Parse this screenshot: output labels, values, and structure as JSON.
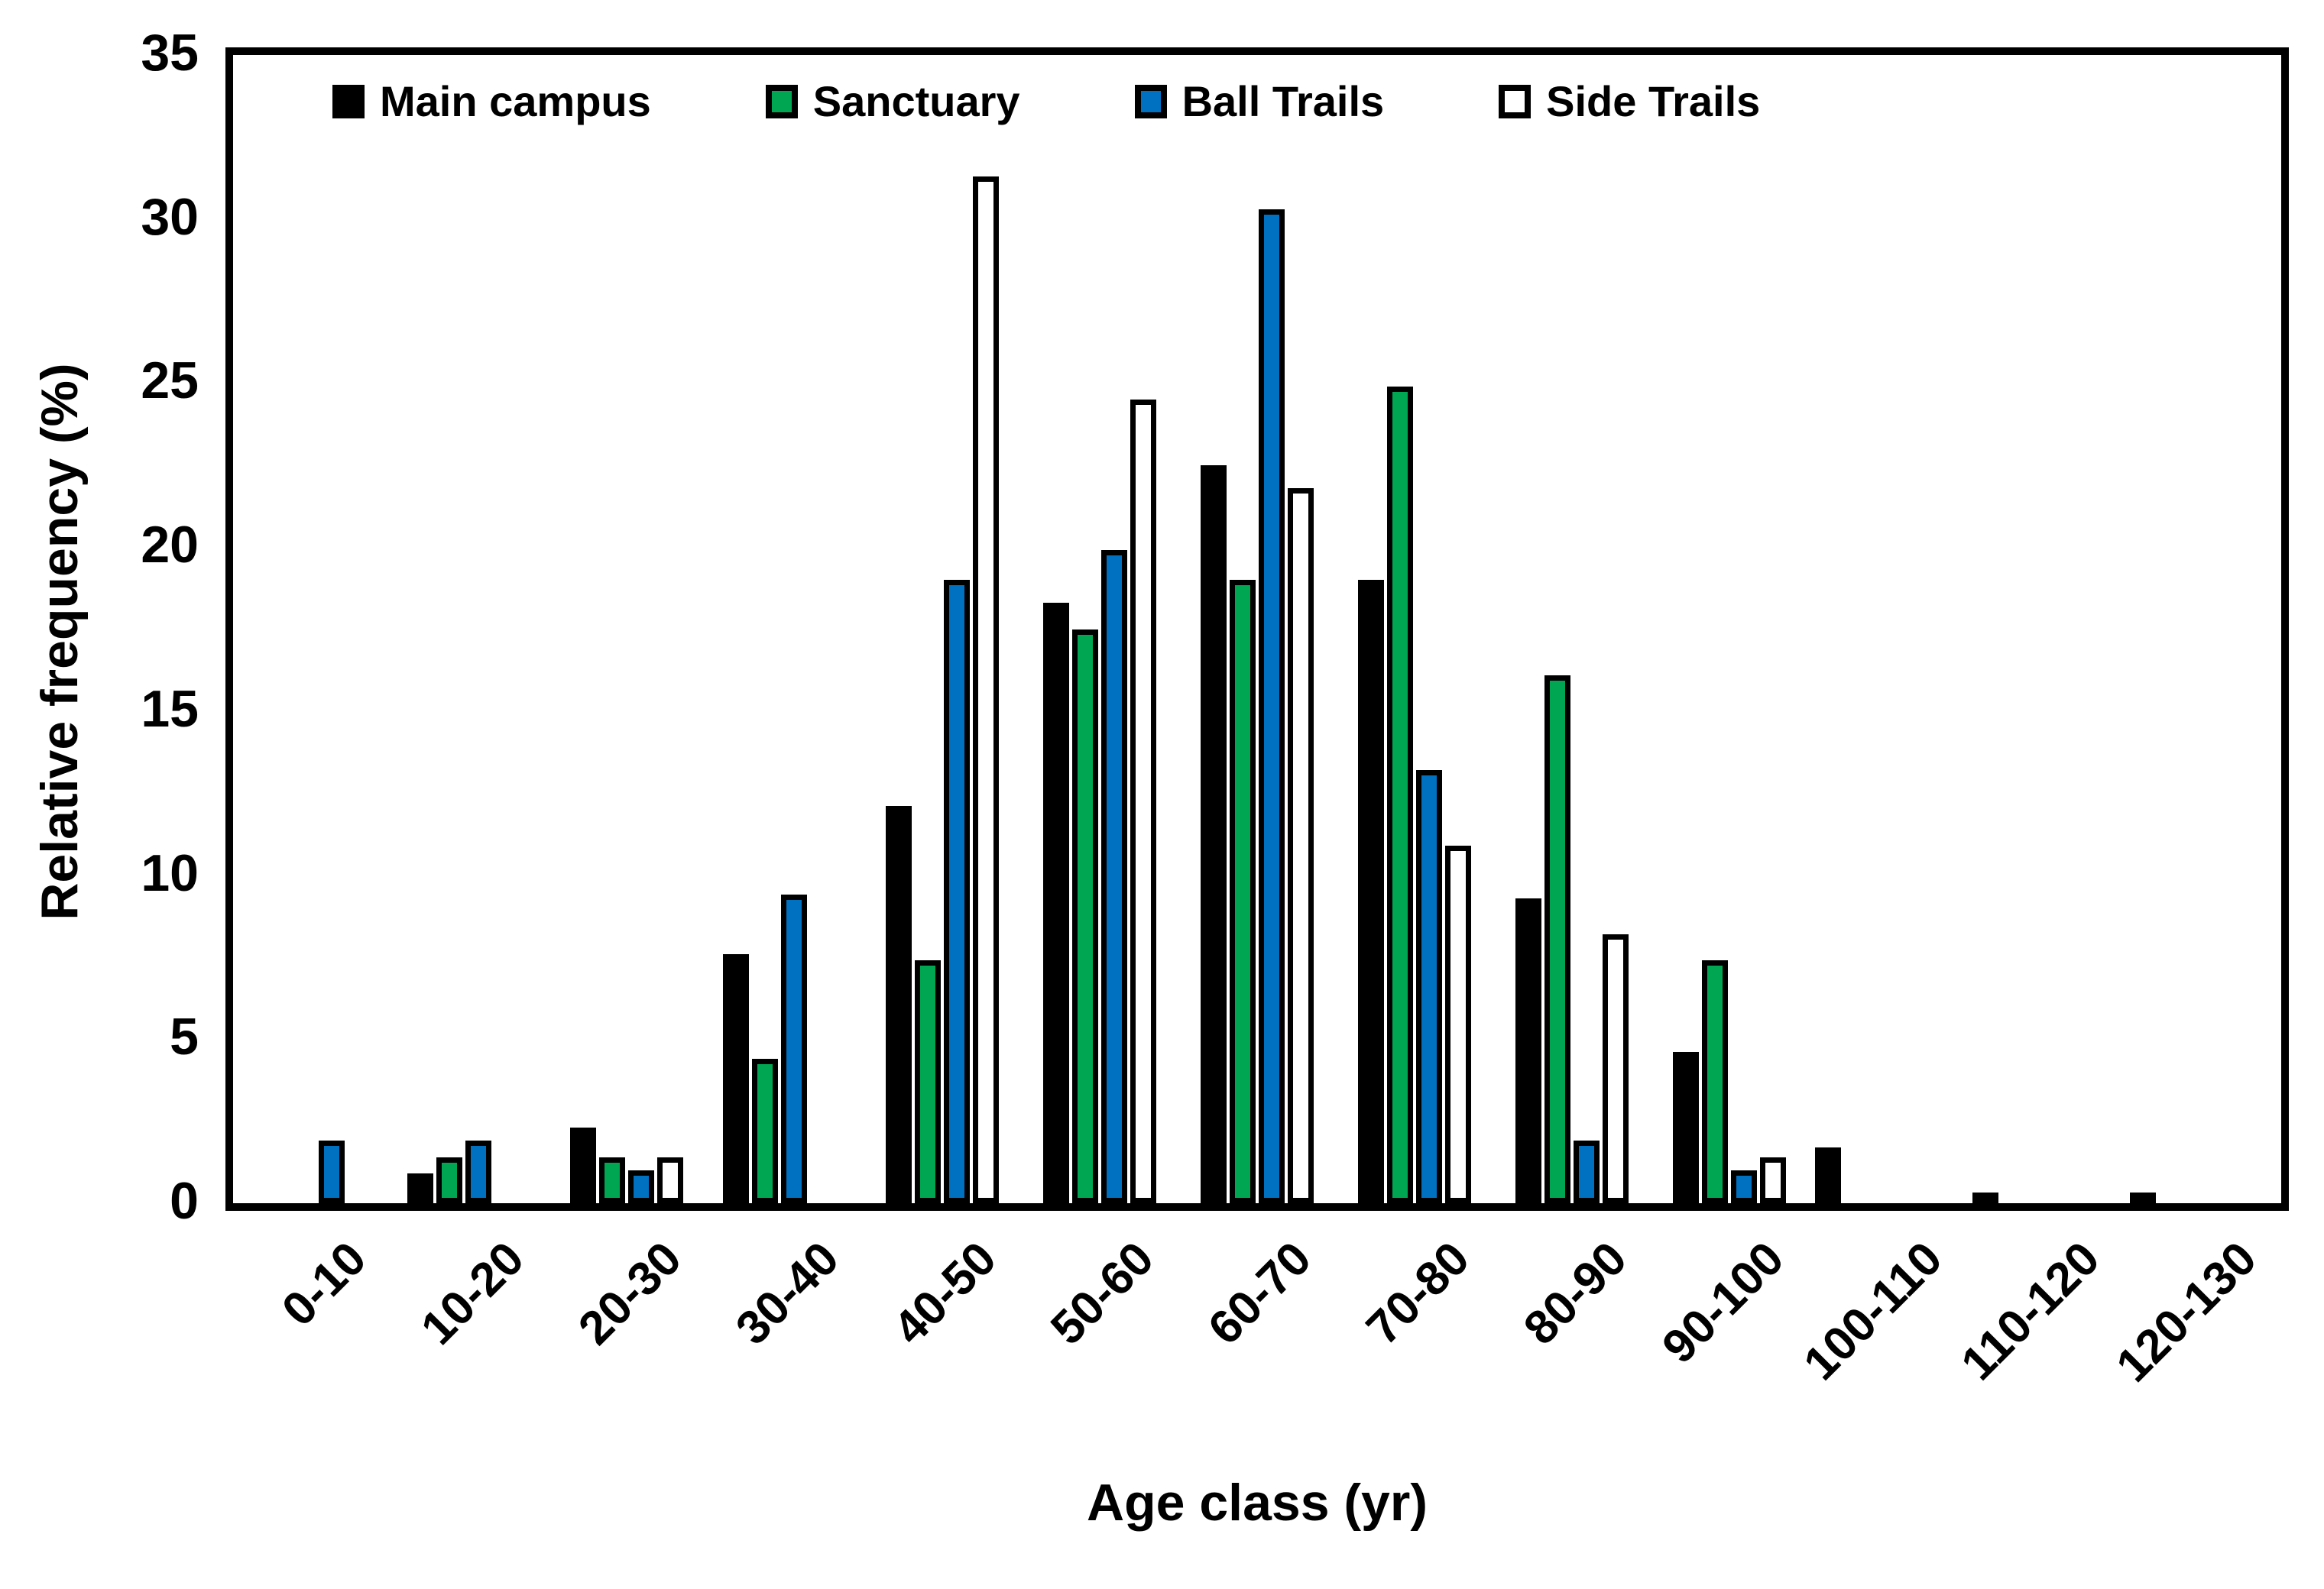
{
  "chart_data": {
    "type": "bar",
    "title": "",
    "xlabel": "Age class  (yr)",
    "ylabel": "Relative frequency  (%)",
    "ylim": [
      0,
      35
    ],
    "yticks": [
      0,
      5,
      10,
      15,
      20,
      25,
      30,
      35
    ],
    "grid": false,
    "legend_position": "top-inside",
    "categories": [
      "0-10",
      "10-20",
      "20-30",
      "30-40",
      "40-50",
      "50-60",
      "60-70",
      "70-80",
      "80-90",
      "90-100",
      "100-110",
      "110-120",
      "120-130"
    ],
    "series": [
      {
        "name": "Main campus",
        "color": "#000000",
        "values": [
          0,
          0.9,
          2.3,
          7.6,
          12.1,
          18.3,
          22.5,
          19.0,
          9.3,
          4.6,
          1.7,
          0.3,
          0.2
        ]
      },
      {
        "name": "Sanctuary",
        "color": "#00A651",
        "values": [
          0,
          1.4,
          1.4,
          4.4,
          7.4,
          17.5,
          19.0,
          24.9,
          16.1,
          7.4,
          0,
          0,
          0
        ]
      },
      {
        "name": "Ball Trails",
        "color": "#0070C0",
        "values": [
          1.9,
          1.9,
          1.0,
          9.4,
          19.0,
          19.9,
          30.3,
          13.2,
          1.9,
          1.0,
          0,
          0,
          0
        ]
      },
      {
        "name": "Side Trails",
        "color": "#FFFFFF",
        "values": [
          0,
          0,
          1.4,
          0,
          31.3,
          24.5,
          21.8,
          10.9,
          8.2,
          1.4,
          0,
          0,
          0
        ]
      }
    ]
  }
}
